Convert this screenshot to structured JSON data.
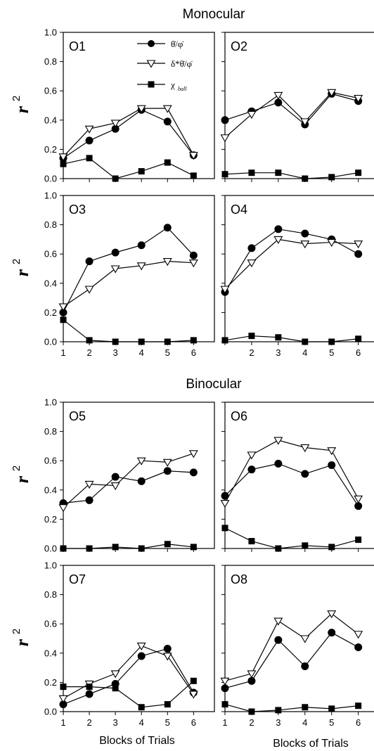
{
  "sections": [
    {
      "title": "Monocular"
    },
    {
      "title": "Binocular"
    }
  ],
  "axis_label": {
    "y": "r",
    "y_superscript": "2",
    "x": "Blocks of Trials"
  },
  "legend": [
    {
      "label": "θ̇/φ̇",
      "marker": "circle-filled"
    },
    {
      "label": "δ*θ̇/φ̇",
      "marker": "triangle-down-open"
    },
    {
      "label": "χ",
      "subscript": "ball",
      "marker": "square-filled"
    }
  ],
  "colors": {
    "axis": "#000000",
    "marker_fill": "#000000",
    "open_fill": "#ffffff",
    "background": "#ffffff"
  },
  "chart_data": [
    {
      "type": "line",
      "panel": "O1",
      "x": [
        1,
        2,
        3,
        4,
        5,
        6
      ],
      "ylim": [
        0,
        1.0
      ],
      "yticks": [
        "0.0",
        "0.2",
        "0.4",
        "0.6",
        "0.8",
        "1.0"
      ],
      "xticks": [],
      "series": [
        {
          "name": "θ̇/φ̇",
          "values": [
            0.14,
            0.26,
            0.34,
            0.47,
            0.39,
            0.16
          ]
        },
        {
          "name": "δ*θ̇/φ̇",
          "values": [
            0.15,
            0.34,
            0.38,
            0.48,
            0.48,
            0.16
          ]
        },
        {
          "name": "χball",
          "values": [
            0.1,
            0.14,
            0.0,
            0.05,
            0.11,
            0.02
          ]
        }
      ]
    },
    {
      "type": "line",
      "panel": "O2",
      "x": [
        1,
        2,
        3,
        4,
        5,
        6
      ],
      "ylim": [
        0,
        1.0
      ],
      "yticks": [],
      "xticks": [],
      "series": [
        {
          "name": "θ̇/φ̇",
          "values": [
            0.4,
            0.46,
            0.52,
            0.37,
            0.58,
            0.53
          ]
        },
        {
          "name": "δ*θ̇/φ̇",
          "values": [
            0.28,
            0.44,
            0.57,
            0.39,
            0.59,
            0.55
          ]
        },
        {
          "name": "χball",
          "values": [
            0.03,
            0.04,
            0.04,
            0.0,
            0.01,
            0.04
          ]
        }
      ]
    },
    {
      "type": "line",
      "panel": "O3",
      "x": [
        1,
        2,
        3,
        4,
        5,
        6
      ],
      "ylim": [
        0,
        1.0
      ],
      "yticks": [
        "0.0",
        "0.2",
        "0.4",
        "0.6",
        "0.8",
        "1.0"
      ],
      "xticks": [
        "1",
        "2",
        "3",
        "4",
        "5",
        "6"
      ],
      "series": [
        {
          "name": "θ̇/φ̇",
          "values": [
            0.2,
            0.55,
            0.61,
            0.66,
            0.78,
            0.59
          ]
        },
        {
          "name": "δ*θ̇/φ̇",
          "values": [
            0.24,
            0.36,
            0.5,
            0.52,
            0.55,
            0.54
          ]
        },
        {
          "name": "χball",
          "values": [
            0.15,
            0.01,
            0.0,
            0.0,
            0.0,
            0.01
          ]
        }
      ]
    },
    {
      "type": "line",
      "panel": "O4",
      "x": [
        1,
        2,
        3,
        4,
        5,
        6
      ],
      "ylim": [
        0,
        1.0
      ],
      "yticks": [],
      "xticks": [
        "2",
        "3",
        "4",
        "5",
        "6"
      ],
      "series": [
        {
          "name": "θ̇/φ̇",
          "values": [
            0.34,
            0.64,
            0.77,
            0.74,
            0.7,
            0.6
          ]
        },
        {
          "name": "δ*θ̇/φ̇",
          "values": [
            0.36,
            0.54,
            0.7,
            0.67,
            0.68,
            0.67
          ]
        },
        {
          "name": "χball",
          "values": [
            0.01,
            0.04,
            0.03,
            0.0,
            0.0,
            0.02
          ]
        }
      ]
    },
    {
      "type": "line",
      "panel": "O5",
      "x": [
        1,
        2,
        3,
        4,
        5,
        6
      ],
      "ylim": [
        0,
        1.0
      ],
      "yticks": [
        "0.0",
        "0.2",
        "0.4",
        "0.6",
        "0.8",
        "1.0"
      ],
      "xticks": [],
      "series": [
        {
          "name": "θ̇/φ̇",
          "values": [
            0.31,
            0.33,
            0.49,
            0.46,
            0.53,
            0.52
          ]
        },
        {
          "name": "δ*θ̇/φ̇",
          "values": [
            0.28,
            0.44,
            0.43,
            0.6,
            0.59,
            0.65
          ]
        },
        {
          "name": "χball",
          "values": [
            0.0,
            0.0,
            0.01,
            0.0,
            0.03,
            0.01
          ]
        }
      ]
    },
    {
      "type": "line",
      "panel": "O6",
      "x": [
        1,
        2,
        3,
        4,
        5,
        6
      ],
      "ylim": [
        0,
        1.0
      ],
      "yticks": [],
      "xticks": [],
      "series": [
        {
          "name": "θ̇/φ̇",
          "values": [
            0.36,
            0.54,
            0.58,
            0.51,
            0.57,
            0.29
          ]
        },
        {
          "name": "δ*θ̇/φ̇",
          "values": [
            0.31,
            0.64,
            0.74,
            0.69,
            0.67,
            0.34
          ]
        },
        {
          "name": "χball",
          "values": [
            0.14,
            0.05,
            0.0,
            0.02,
            0.01,
            0.06
          ]
        }
      ]
    },
    {
      "type": "line",
      "panel": "O7",
      "x": [
        1,
        2,
        3,
        4,
        5,
        6
      ],
      "ylim": [
        0,
        1.0
      ],
      "yticks": [
        "0.0",
        "0.2",
        "0.4",
        "0.6",
        "0.8",
        "1.0"
      ],
      "xticks": [
        "1",
        "2",
        "3",
        "4",
        "5",
        "6"
      ],
      "series": [
        {
          "name": "θ̇/φ̇",
          "values": [
            0.05,
            0.12,
            0.19,
            0.38,
            0.43,
            0.13
          ]
        },
        {
          "name": "δ*θ̇/φ̇",
          "values": [
            0.09,
            0.19,
            0.26,
            0.45,
            0.38,
            0.12
          ]
        },
        {
          "name": "χball",
          "values": [
            0.17,
            0.17,
            0.16,
            0.03,
            0.05,
            0.21
          ]
        }
      ]
    },
    {
      "type": "line",
      "panel": "O8",
      "x": [
        1,
        2,
        3,
        4,
        5,
        6
      ],
      "ylim": [
        0,
        1.0
      ],
      "yticks": [],
      "xticks": [
        "1",
        "2",
        "3",
        "4",
        "5",
        "6"
      ],
      "series": [
        {
          "name": "θ̇/φ̇",
          "values": [
            0.16,
            0.21,
            0.49,
            0.31,
            0.54,
            0.44
          ]
        },
        {
          "name": "δ*θ̇/φ̇",
          "values": [
            0.21,
            0.26,
            0.62,
            0.5,
            0.67,
            0.53
          ]
        },
        {
          "name": "χball",
          "values": [
            0.05,
            0.0,
            0.01,
            0.03,
            0.02,
            0.04
          ]
        }
      ]
    }
  ]
}
